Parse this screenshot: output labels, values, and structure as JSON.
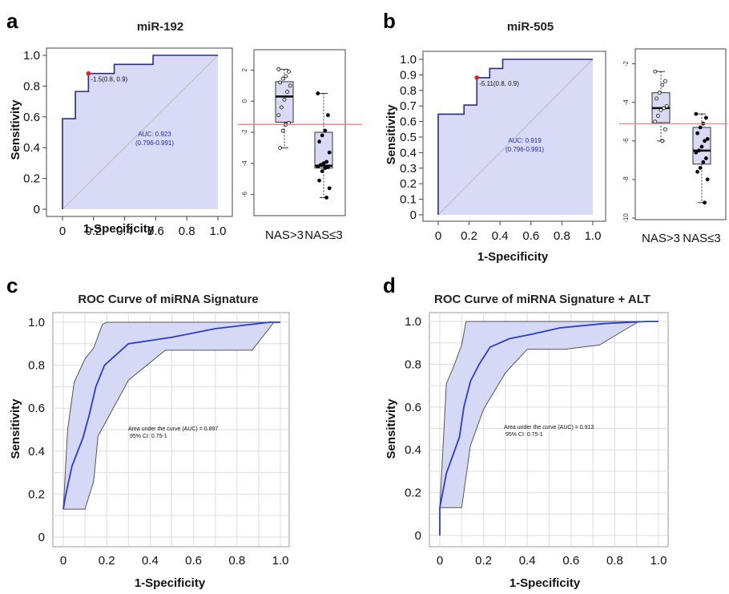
{
  "figure": {
    "panels": [
      {
        "id": "a",
        "letter": "a",
        "title": "miR-192"
      },
      {
        "id": "b",
        "letter": "b",
        "title": "miR-505"
      },
      {
        "id": "c",
        "letter": "c",
        "title": "ROC Curve of miRNA Signature"
      },
      {
        "id": "d",
        "letter": "d",
        "title": "ROC Curve of miRNA Signature + ALT"
      }
    ]
  },
  "chart_data": [
    {
      "panel": "a",
      "type": "line",
      "subtype": "roc-step",
      "title": "miR-192",
      "xlabel": "1-Specificity",
      "ylabel": "Sensitivity",
      "xlim": [
        0,
        1
      ],
      "ylim": [
        0,
        1
      ],
      "xticks": [
        "0",
        "0.2",
        "0.4",
        "0.6",
        "0.8",
        "1.0"
      ],
      "yticks": [
        "0",
        "0.2",
        "0.4",
        "0.6",
        "0.8",
        "1.0"
      ],
      "x": [
        0,
        0,
        0.083,
        0.083,
        0.167,
        0.167,
        0.167,
        0.333,
        0.333,
        0.583,
        0.583,
        1.0,
        1.0
      ],
      "y": [
        0,
        0.588,
        0.588,
        0.765,
        0.765,
        0.882,
        0.882,
        0.882,
        0.941,
        0.941,
        1.0,
        1.0,
        1.0
      ],
      "threshold_point": {
        "x": 0.167,
        "y": 0.882,
        "label": "-1.5(0.8, 0.9)"
      },
      "auc_text": "AUC: 0.923",
      "ci_text": "(0.796-0.991)",
      "diagonal": true,
      "colors": {
        "curve": "#2b2b8c",
        "fill": "#d8daf6",
        "point": "#e02020",
        "diagonal": "#bbbbbb"
      }
    },
    {
      "panel": "a",
      "type": "box",
      "categories": [
        "NAS>3",
        "NAS≤3"
      ],
      "ylim": [
        -7,
        3
      ],
      "yticks": [
        "-6",
        "-4",
        "-2",
        "0",
        "2"
      ],
      "cutoff": -1.5,
      "boxes": [
        {
          "name": "NAS>3",
          "whisker_low": -3.0,
          "q1": -1.35,
          "median": 0.3,
          "q3": 1.25,
          "whisker_high": 2.05,
          "open_points": true,
          "points": [
            2.05,
            1.9,
            1.6,
            1.45,
            1.2,
            1.0,
            0.6,
            0.1,
            -0.4,
            -0.9,
            -1.4,
            -1.5,
            -1.9,
            -3.0
          ]
        },
        {
          "name": "NAS≤3",
          "whisker_low": -6.2,
          "q1": -4.3,
          "median": -4.15,
          "q3": -2.0,
          "whisker_high": 0.5,
          "open_points": false,
          "points": [
            0.5,
            -0.9,
            -1.9,
            -2.2,
            -2.6,
            -3.3,
            -3.9,
            -4.0,
            -4.1,
            -4.2,
            -4.25,
            -4.3,
            -4.5,
            -5.1,
            -5.6,
            -6.2
          ]
        }
      ],
      "colors": {
        "box": "#d8daf6",
        "cutoff": "#ff8080"
      }
    },
    {
      "panel": "b",
      "type": "line",
      "subtype": "roc-step",
      "title": "miR-505",
      "xlabel": "1-Specificity",
      "ylabel": "Sensitivity",
      "xlim": [
        0,
        1
      ],
      "ylim": [
        0,
        1
      ],
      "xticks": [
        "0",
        "0.2",
        "0.4",
        "0.6",
        "0.8",
        "1.0"
      ],
      "yticks": [
        "0",
        "0.1",
        "0.2",
        "0.3",
        "0.4",
        "0.5",
        "0.6",
        "0.7",
        "0.8",
        "0.9",
        "1.0"
      ],
      "x": [
        0,
        0,
        0.167,
        0.167,
        0.25,
        0.25,
        0.25,
        0.333,
        0.333,
        0.417,
        0.417,
        1.0,
        1.0
      ],
      "y": [
        0,
        0.647,
        0.647,
        0.706,
        0.706,
        0.882,
        0.882,
        0.882,
        0.941,
        0.941,
        1.0,
        1.0,
        1.0
      ],
      "threshold_point": {
        "x": 0.25,
        "y": 0.882,
        "label": "-5.11(0.8, 0.9)"
      },
      "auc_text": "AUC: 0.919",
      "ci_text": "(0.796-0.991)",
      "diagonal": true,
      "colors": {
        "curve": "#2b2b8c",
        "fill": "#d8daf6",
        "point": "#e02020",
        "diagonal": "#bbbbbb"
      }
    },
    {
      "panel": "b",
      "type": "box",
      "categories": [
        "NAS>3",
        "NAS≤3"
      ],
      "ylim": [
        -10,
        -1.6
      ],
      "yticks": [
        "-10",
        "-8",
        "-6",
        "-4",
        "-2"
      ],
      "cutoff": -5.11,
      "boxes": [
        {
          "name": "NAS>3",
          "whisker_low": -6.0,
          "q1": -5.05,
          "median": -4.3,
          "q3": -3.5,
          "whisker_high": -2.4,
          "open_points": true,
          "points": [
            -2.4,
            -2.9,
            -3.1,
            -3.5,
            -3.8,
            -4.2,
            -4.3,
            -4.4,
            -4.7,
            -5.0,
            -5.4,
            -6.0
          ]
        },
        {
          "name": "NAS≤3",
          "whisker_low": -9.2,
          "q1": -7.2,
          "median": -6.5,
          "q3": -5.3,
          "whisker_high": -4.6,
          "open_points": false,
          "points": [
            -4.6,
            -4.8,
            -5.1,
            -5.3,
            -5.6,
            -5.9,
            -6.0,
            -6.3,
            -6.5,
            -6.6,
            -6.9,
            -7.1,
            -7.4,
            -7.6,
            -8.0,
            -9.2
          ]
        }
      ],
      "colors": {
        "box": "#d8daf6",
        "cutoff": "#ff8080"
      }
    },
    {
      "panel": "c",
      "type": "line",
      "subtype": "roc-ci-band",
      "title": "ROC Curve of miRNA Signature",
      "xlabel": "1-Specificity",
      "ylabel": "Sensitivity",
      "xlim": [
        0,
        1
      ],
      "ylim": [
        0,
        1
      ],
      "xticks": [
        "0",
        "0.2",
        "0.4",
        "0.6",
        "0.8",
        "1.0"
      ],
      "yticks": [
        "0",
        "0.2",
        "0.4",
        "0.6",
        "0.8",
        "1.0"
      ],
      "curve": {
        "x": [
          0,
          0.01,
          0.04,
          0.09,
          0.12,
          0.15,
          0.19,
          0.3,
          0.5,
          0.7,
          0.95,
          1.0
        ],
        "y": [
          0.13,
          0.19,
          0.33,
          0.46,
          0.57,
          0.7,
          0.8,
          0.9,
          0.93,
          0.97,
          1.0,
          1.0
        ]
      },
      "band_upper": {
        "x": [
          0,
          0.02,
          0.05,
          0.1,
          0.14,
          0.18,
          0.2,
          1.0
        ],
        "y": [
          0.13,
          0.5,
          0.72,
          0.83,
          0.88,
          0.99,
          1.0,
          1.0
        ]
      },
      "band_lower": {
        "x": [
          0,
          0.1,
          0.14,
          0.16,
          0.3,
          0.47,
          0.87,
          0.97
        ],
        "y": [
          0.13,
          0.13,
          0.26,
          0.47,
          0.73,
          0.87,
          0.87,
          1.0
        ]
      },
      "auc_text": "Area under the curve (AUC) = 0.897",
      "ci_text": "95% CI: 0.75-1",
      "colors": {
        "curve": "#2a3ad8",
        "fill": "#d6d9f5",
        "band": "#555555"
      }
    },
    {
      "panel": "d",
      "type": "line",
      "subtype": "roc-ci-band",
      "title": "ROC Curve of miRNA Signature + ALT",
      "xlabel": "1-Specificity",
      "ylabel": "Sensitivity",
      "xlim": [
        0,
        1
      ],
      "ylim": [
        0,
        1
      ],
      "xticks": [
        "0",
        "0.2",
        "0.4",
        "0.6",
        "0.8",
        "1.0"
      ],
      "yticks": [
        "0",
        "0.2",
        "0.4",
        "0.6",
        "0.8",
        "1.0"
      ],
      "curve": {
        "x": [
          0,
          0,
          0.03,
          0.09,
          0.11,
          0.14,
          0.18,
          0.23,
          0.32,
          0.42,
          0.55,
          0.75,
          0.95,
          1.0
        ],
        "y": [
          0,
          0.13,
          0.29,
          0.46,
          0.6,
          0.72,
          0.8,
          0.88,
          0.92,
          0.94,
          0.97,
          0.99,
          1.0,
          1.0
        ]
      },
      "band_upper": {
        "x": [
          0,
          0.03,
          0.06,
          0.1,
          0.12,
          1.0
        ],
        "y": [
          0.13,
          0.71,
          0.78,
          0.89,
          1.0,
          1.0
        ]
      },
      "band_lower": {
        "x": [
          0,
          0.1,
          0.14,
          0.2,
          0.3,
          0.4,
          0.57,
          0.73,
          0.91
        ],
        "y": [
          0.13,
          0.13,
          0.42,
          0.59,
          0.76,
          0.87,
          0.87,
          0.89,
          1.0
        ]
      },
      "auc_text": "Area under the curve (AUC) = 0.913",
      "ci_text": "95% CI: 0.75-1",
      "colors": {
        "curve": "#2a3ad8",
        "fill": "#d6d9f5",
        "band": "#555555"
      }
    }
  ]
}
